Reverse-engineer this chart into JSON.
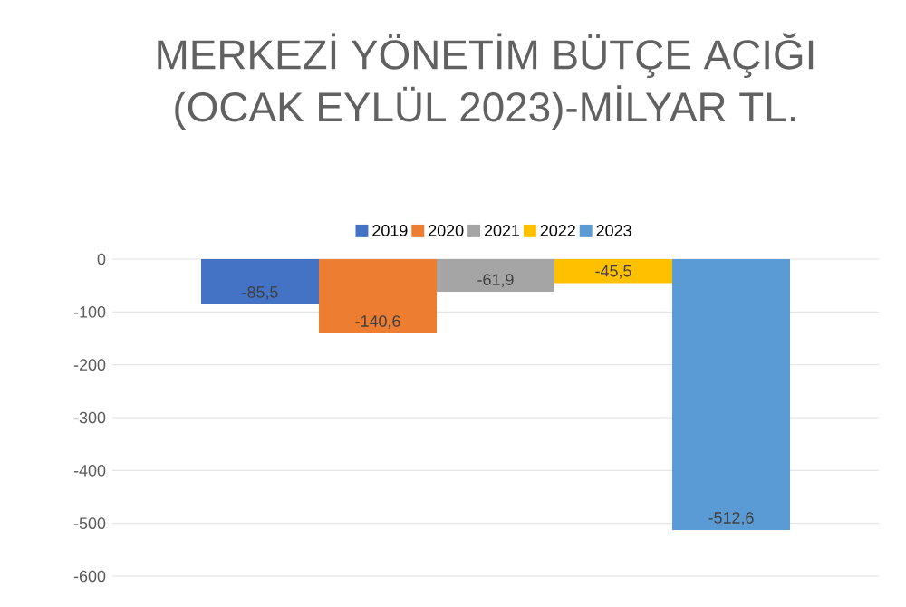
{
  "chart_data": {
    "type": "bar",
    "title": "MERKEZİ YÖNETİM BÜTÇE AÇIĞI\n(OCAK EYLÜL 2023)-MİLYAR TL.",
    "categories": [
      null
    ],
    "series": [
      {
        "name": "2019",
        "color": "#4472c4",
        "values": [
          -85.5
        ],
        "value_labels": [
          "-85,5"
        ]
      },
      {
        "name": "2020",
        "color": "#ed7d31",
        "values": [
          -140.6
        ],
        "value_labels": [
          "-140,6"
        ]
      },
      {
        "name": "2021",
        "color": "#a5a5a5",
        "values": [
          -61.9
        ],
        "value_labels": [
          "-61,9"
        ]
      },
      {
        "name": "2022",
        "color": "#ffc000",
        "values": [
          -45.5
        ],
        "value_labels": [
          "-45,5"
        ]
      },
      {
        "name": "2023",
        "color": "#5b9bd5",
        "values": [
          -512.6
        ],
        "value_labels": [
          "-512,6"
        ]
      }
    ],
    "ylim": [
      -600,
      0
    ],
    "yticks": [
      -600,
      -500,
      -400,
      -300,
      -200,
      -100,
      0
    ],
    "grid": "y",
    "legend": "top"
  }
}
